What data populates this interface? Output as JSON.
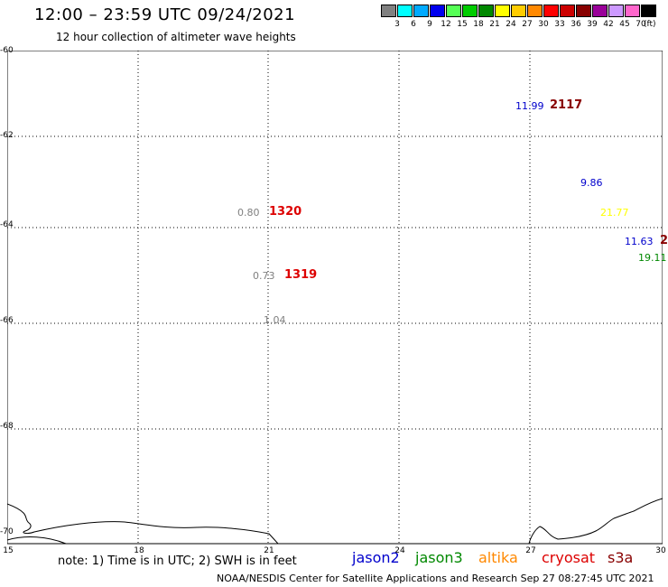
{
  "header": {
    "title": "12:00 – 23:59 UTC 09/24/2021",
    "subtitle": "12 hour collection of altimeter wave heights"
  },
  "color_scale": {
    "swatches": [
      "#808080",
      "#00ffff",
      "#00aaff",
      "#0000ee",
      "#55ff55",
      "#00cc00",
      "#008800",
      "#ffff00",
      "#ffcc00",
      "#ff8800",
      "#ff0000",
      "#cc0000",
      "#880000",
      "#990099",
      "#cc99ff",
      "#ff66cc",
      "#000000"
    ],
    "ticks": [
      "3",
      "6",
      "9",
      "12",
      "15",
      "18",
      "21",
      "24",
      "27",
      "30",
      "33",
      "36",
      "39",
      "42",
      "45",
      "70"
    ],
    "unit": "(ft)"
  },
  "map": {
    "lat_labels": [
      "-60",
      "-62",
      "-64",
      "-66",
      "-68",
      "-70"
    ],
    "lon_labels": [
      "15",
      "18",
      "21",
      "24",
      "27",
      "30"
    ],
    "lat_range": [
      -60,
      -70
    ],
    "lon_range": [
      15,
      30
    ],
    "grid": "dotted"
  },
  "observations": {
    "swh": [
      {
        "text": "11.99",
        "color": "#0000cc"
      },
      {
        "text": "9.86",
        "color": "#0000cc"
      },
      {
        "text": "21.77",
        "color": "#ffff00"
      },
      {
        "text": "11.63",
        "color": "#0000cc"
      },
      {
        "text": "19.11",
        "color": "#008800"
      },
      {
        "text": "0.80",
        "color": "#808080"
      },
      {
        "text": "0.73",
        "color": "#808080"
      },
      {
        "text": "1.04",
        "color": "#808080"
      }
    ],
    "passes": [
      {
        "text": "2117",
        "color": "#880000"
      },
      {
        "text": "1320",
        "color": "#dd0000"
      },
      {
        "text": "1319",
        "color": "#dd0000"
      },
      {
        "text": "2",
        "color": "#880000"
      }
    ]
  },
  "footer": {
    "note": "note: 1) Time is in UTC; 2) SWH is in feet",
    "satellites": [
      {
        "name": "jason2",
        "color": "#0000cc"
      },
      {
        "name": "jason3",
        "color": "#008800"
      },
      {
        "name": "altika",
        "color": "#ff8800"
      },
      {
        "name": "cryosat",
        "color": "#dd0000"
      },
      {
        "name": "s3a",
        "color": "#880000"
      }
    ],
    "credit": "NOAA/NESDIS Center for Satellite Applications and Research    Sep 27 08:27:45 UTC 2021"
  }
}
